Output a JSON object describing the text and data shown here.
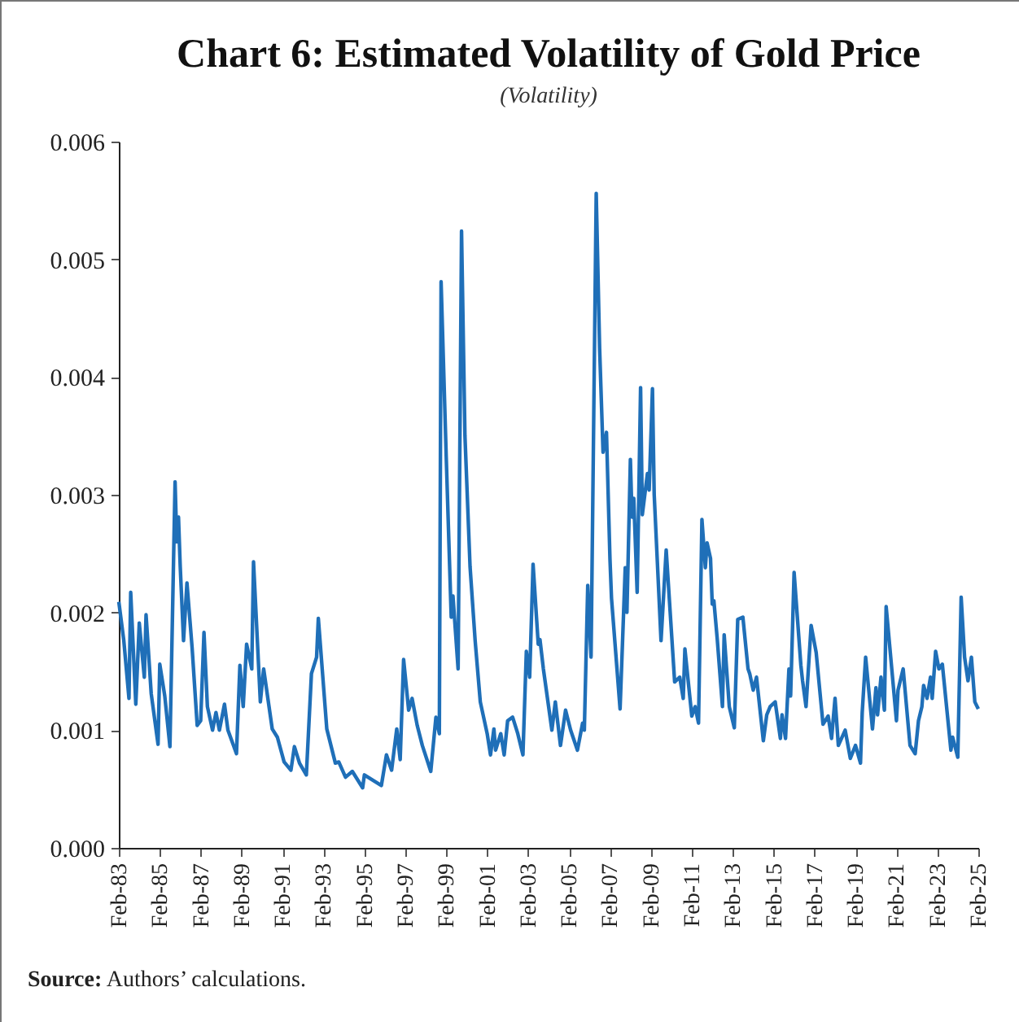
{
  "chart_data": {
    "type": "line",
    "title": "Chart 6: Estimated Volatility of Gold Price",
    "subtitle": "(Volatility)",
    "annotations": [
      "Source: Authors’ calculations."
    ],
    "x": [
      "1983-02",
      "1983-05",
      "1983-08",
      "1983-09",
      "1983-12",
      "1984-02",
      "1984-05",
      "1984-06",
      "1984-09",
      "1985-01",
      "1985-02",
      "1985-05",
      "1985-08",
      "1985-11",
      "1985-12",
      "1986-01",
      "1986-02",
      "1986-04",
      "1986-06",
      "1986-09",
      "1986-12",
      "1987-02",
      "1987-04",
      "1987-06",
      "1987-09",
      "1987-11",
      "1988-01",
      "1988-04",
      "1988-06",
      "1988-11",
      "1989-01",
      "1989-03",
      "1989-05",
      "1989-08",
      "1989-09",
      "1990-01",
      "1990-03",
      "1990-08",
      "1990-11",
      "1991-03",
      "1991-07",
      "1991-09",
      "1991-12",
      "1992-04",
      "1992-07",
      "1992-10",
      "1992-11",
      "1993-04",
      "1993-09",
      "1993-11",
      "1994-03",
      "1994-07",
      "1995-01",
      "1995-02",
      "1995-12",
      "1996-03",
      "1996-06",
      "1996-09",
      "1996-11",
      "1997-01",
      "1997-04",
      "1997-06",
      "1997-09",
      "1997-12",
      "1998-05",
      "1998-08",
      "1998-10",
      "1998-11",
      "1999-02",
      "1999-05",
      "1999-06",
      "1999-09",
      "1999-11",
      "2000-01",
      "2000-04",
      "2000-07",
      "2000-10",
      "2001-02",
      "2001-04",
      "2001-06",
      "2001-07",
      "2001-10",
      "2001-12",
      "2002-02",
      "2002-05",
      "2002-08",
      "2002-11",
      "2003-01",
      "2003-03",
      "2003-05",
      "2003-08",
      "2003-09",
      "2003-11",
      "2004-04",
      "2004-06",
      "2004-09",
      "2004-12",
      "2005-03",
      "2005-07",
      "2005-10",
      "2005-11",
      "2006-01",
      "2006-03",
      "2006-06",
      "2006-08",
      "2006-10",
      "2006-12",
      "2007-02",
      "2007-03",
      "2007-08",
      "2007-11",
      "2007-12",
      "2008-02",
      "2008-03",
      "2008-04",
      "2008-06",
      "2008-08",
      "2008-09",
      "2008-12",
      "2009-01",
      "2009-03",
      "2009-04",
      "2009-08",
      "2009-11",
      "2010-04",
      "2010-07",
      "2010-09",
      "2010-10",
      "2011-02",
      "2011-04",
      "2011-06",
      "2011-08",
      "2011-10",
      "2011-11",
      "2012-01",
      "2012-02",
      "2012-03",
      "2012-05",
      "2012-08",
      "2012-09",
      "2012-12",
      "2013-03",
      "2013-05",
      "2013-08",
      "2013-11",
      "2013-12",
      "2014-02",
      "2014-04",
      "2014-08",
      "2014-10",
      "2014-12",
      "2015-03",
      "2015-06",
      "2015-07",
      "2015-09",
      "2015-11",
      "2015-12",
      "2016-02",
      "2016-06",
      "2016-07",
      "2016-09",
      "2016-12",
      "2017-03",
      "2017-07",
      "2017-10",
      "2017-12",
      "2018-02",
      "2018-04",
      "2018-08",
      "2018-11",
      "2019-02",
      "2019-05",
      "2019-06",
      "2019-08",
      "2019-12",
      "2020-02",
      "2020-03",
      "2020-05",
      "2020-07",
      "2020-08",
      "2021-02",
      "2021-03",
      "2021-06",
      "2021-10",
      "2022-01",
      "2022-03",
      "2022-05",
      "2022-06",
      "2022-08",
      "2022-10",
      "2022-11",
      "2023-01",
      "2023-03",
      "2023-05",
      "2023-10",
      "2023-11",
      "2024-02",
      "2024-04",
      "2024-06",
      "2024-08",
      "2024-10",
      "2024-12",
      "2025-02"
    ],
    "series": [
      {
        "color": "#1f6fb8",
        "values": [
          0.00209,
          0.00176,
          0.00127,
          0.00217,
          0.00122,
          0.00191,
          0.00145,
          0.00198,
          0.00131,
          0.00088,
          0.00156,
          0.00129,
          0.00086,
          0.00311,
          0.0026,
          0.00281,
          0.00239,
          0.00176,
          0.00225,
          0.0017,
          0.00104,
          0.00108,
          0.00183,
          0.0012,
          0.001,
          0.00115,
          0.001,
          0.00122,
          0.001,
          0.0008,
          0.00155,
          0.0012,
          0.00173,
          0.00152,
          0.00243,
          0.00124,
          0.00152,
          0.00101,
          0.00094,
          0.00073,
          0.00066,
          0.00086,
          0.00072,
          0.00062,
          0.00148,
          0.00162,
          0.00195,
          0.00101,
          0.00072,
          0.00073,
          0.0006,
          0.00065,
          0.00051,
          0.00062,
          0.00053,
          0.00079,
          0.00066,
          0.00101,
          0.00075,
          0.0016,
          0.00117,
          0.00127,
          0.00104,
          0.00087,
          0.00065,
          0.00111,
          0.00097,
          0.00481,
          0.00332,
          0.00196,
          0.00214,
          0.00152,
          0.00524,
          0.0035,
          0.00239,
          0.00176,
          0.00124,
          0.00097,
          0.00079,
          0.00101,
          0.00083,
          0.00097,
          0.00079,
          0.00108,
          0.00111,
          0.00097,
          0.00079,
          0.00167,
          0.00145,
          0.00241,
          0.00173,
          0.00177,
          0.00152,
          0.001,
          0.00124,
          0.00087,
          0.00117,
          0.001,
          0.00083,
          0.00106,
          0.001,
          0.00223,
          0.00162,
          0.00556,
          0.00424,
          0.00336,
          0.00353,
          0.00246,
          0.00212,
          0.00118,
          0.00238,
          0.002,
          0.0033,
          0.00281,
          0.00297,
          0.00217,
          0.00391,
          0.00283,
          0.00318,
          0.00304,
          0.0039,
          0.003,
          0.00176,
          0.00253,
          0.00141,
          0.00145,
          0.00127,
          0.00169,
          0.00112,
          0.0012,
          0.00106,
          0.00279,
          0.00238,
          0.00259,
          0.00246,
          0.00207,
          0.0021,
          0.00177,
          0.0012,
          0.00181,
          0.0012,
          0.00102,
          0.00194,
          0.00196,
          0.00152,
          0.00148,
          0.00134,
          0.00145,
          0.00091,
          0.00113,
          0.0012,
          0.00124,
          0.00093,
          0.00113,
          0.00093,
          0.00152,
          0.00129,
          0.00234,
          0.00155,
          0.00142,
          0.0012,
          0.00189,
          0.00166,
          0.00105,
          0.00112,
          0.00093,
          0.00127,
          0.00087,
          0.001,
          0.00076,
          0.00087,
          0.00072,
          0.00115,
          0.00162,
          0.00101,
          0.00136,
          0.00113,
          0.00145,
          0.00117,
          0.00205,
          0.00108,
          0.00134,
          0.00152,
          0.00087,
          0.0008,
          0.00108,
          0.0012,
          0.00138,
          0.00127,
          0.00145,
          0.00127,
          0.00167,
          0.00152,
          0.00156,
          0.00083,
          0.00094,
          0.00077,
          0.00213,
          0.00162,
          0.00142,
          0.00162,
          0.00124,
          0.00118
        ]
      }
    ],
    "xlim": [
      "1983-02",
      "2025-02"
    ],
    "xticks": [
      {
        "value": "1983-02",
        "label": "Feb-83"
      },
      {
        "value": "1985-02",
        "label": "Feb-85"
      },
      {
        "value": "1987-02",
        "label": "Feb-87"
      },
      {
        "value": "1989-02",
        "label": "Feb-89"
      },
      {
        "value": "1991-02",
        "label": "Feb-91"
      },
      {
        "value": "1993-02",
        "label": "Feb-93"
      },
      {
        "value": "1995-02",
        "label": "Feb-95"
      },
      {
        "value": "1997-02",
        "label": "Feb-97"
      },
      {
        "value": "1999-02",
        "label": "Feb-99"
      },
      {
        "value": "2001-02",
        "label": "Feb-01"
      },
      {
        "value": "2003-02",
        "label": "Feb-03"
      },
      {
        "value": "2005-02",
        "label": "Feb-05"
      },
      {
        "value": "2007-02",
        "label": "Feb-07"
      },
      {
        "value": "2009-02",
        "label": "Feb-09"
      },
      {
        "value": "2011-02",
        "label": "Feb-11"
      },
      {
        "value": "2013-02",
        "label": "Feb-13"
      },
      {
        "value": "2015-02",
        "label": "Feb-15"
      },
      {
        "value": "2017-02",
        "label": "Feb-17"
      },
      {
        "value": "2019-02",
        "label": "Feb-19"
      },
      {
        "value": "2021-02",
        "label": "Feb-21"
      },
      {
        "value": "2023-02",
        "label": "Feb-23"
      },
      {
        "value": "2025-02",
        "label": "Feb-25"
      }
    ],
    "ylim": [
      0,
      0.006
    ],
    "yticks": [
      {
        "value": 0,
        "label": "0.000"
      },
      {
        "value": 0.001,
        "label": "0.001"
      },
      {
        "value": 0.002,
        "label": "0.002"
      },
      {
        "value": 0.003,
        "label": "0.003"
      },
      {
        "value": 0.004,
        "label": "0.004"
      },
      {
        "value": 0.005,
        "label": "0.005"
      },
      {
        "value": 0.006,
        "label": "0.006"
      }
    ]
  }
}
